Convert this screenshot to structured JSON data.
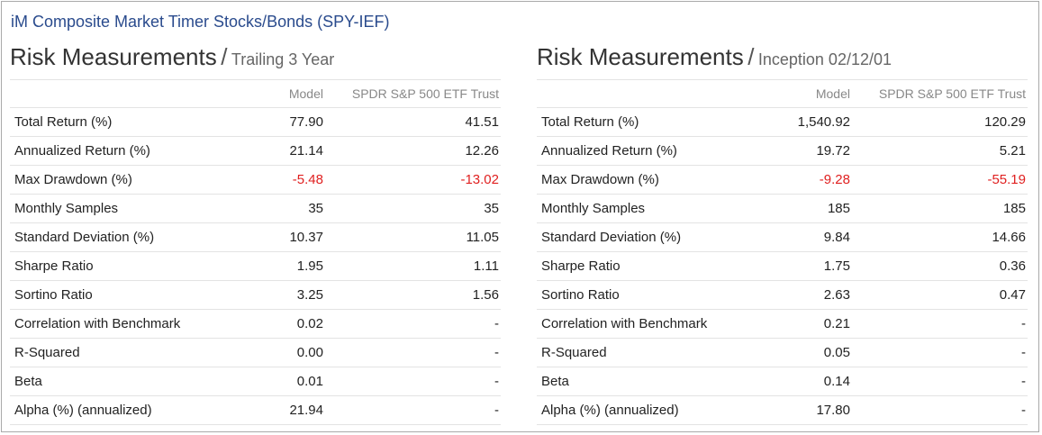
{
  "page_title": "iM Composite Market Timer Stocks/Bonds (SPY-IEF)",
  "sections": [
    {
      "heading": "Risk Measurements",
      "separator": "/",
      "subheading": "Trailing 3 Year",
      "columns": [
        "",
        "Model",
        "SPDR S&P 500 ETF Trust"
      ],
      "rows": [
        {
          "label": "Total Return (%)",
          "model": "77.90",
          "benchmark": "41.51"
        },
        {
          "label": "Annualized Return (%)",
          "model": "21.14",
          "benchmark": "12.26"
        },
        {
          "label": "Max Drawdown (%)",
          "model": "-5.48",
          "benchmark": "-13.02"
        },
        {
          "label": "Monthly Samples",
          "model": "35",
          "benchmark": "35"
        },
        {
          "label": "Standard Deviation (%)",
          "model": "10.37",
          "benchmark": "11.05"
        },
        {
          "label": "Sharpe Ratio",
          "model": "1.95",
          "benchmark": "1.11"
        },
        {
          "label": "Sortino Ratio",
          "model": "3.25",
          "benchmark": "1.56"
        },
        {
          "label": "Correlation with Benchmark",
          "model": "0.02",
          "benchmark": "-"
        },
        {
          "label": "R-Squared",
          "model": "0.00",
          "benchmark": "-"
        },
        {
          "label": "Beta",
          "model": "0.01",
          "benchmark": "-"
        },
        {
          "label": "Alpha (%) (annualized)",
          "model": "21.94",
          "benchmark": "-"
        }
      ]
    },
    {
      "heading": "Risk Measurements",
      "separator": "/",
      "subheading": "Inception 02/12/01",
      "columns": [
        "",
        "Model",
        "SPDR S&P 500 ETF Trust"
      ],
      "rows": [
        {
          "label": "Total Return (%)",
          "model": "1,540.92",
          "benchmark": "120.29"
        },
        {
          "label": "Annualized Return (%)",
          "model": "19.72",
          "benchmark": "5.21"
        },
        {
          "label": "Max Drawdown (%)",
          "model": "-9.28",
          "benchmark": "-55.19"
        },
        {
          "label": "Monthly Samples",
          "model": "185",
          "benchmark": "185"
        },
        {
          "label": "Standard Deviation (%)",
          "model": "9.84",
          "benchmark": "14.66"
        },
        {
          "label": "Sharpe Ratio",
          "model": "1.75",
          "benchmark": "0.36"
        },
        {
          "label": "Sortino Ratio",
          "model": "2.63",
          "benchmark": "0.47"
        },
        {
          "label": "Correlation with Benchmark",
          "model": "0.21",
          "benchmark": "-"
        },
        {
          "label": "R-Squared",
          "model": "0.05",
          "benchmark": "-"
        },
        {
          "label": "Beta",
          "model": "0.14",
          "benchmark": "-"
        },
        {
          "label": "Alpha (%) (annualized)",
          "model": "17.80",
          "benchmark": "-"
        }
      ]
    }
  ],
  "colors": {
    "title": "#2a4b8d",
    "negative": "#e02020",
    "header_text": "#888888",
    "row_border": "#e3e3e3"
  }
}
